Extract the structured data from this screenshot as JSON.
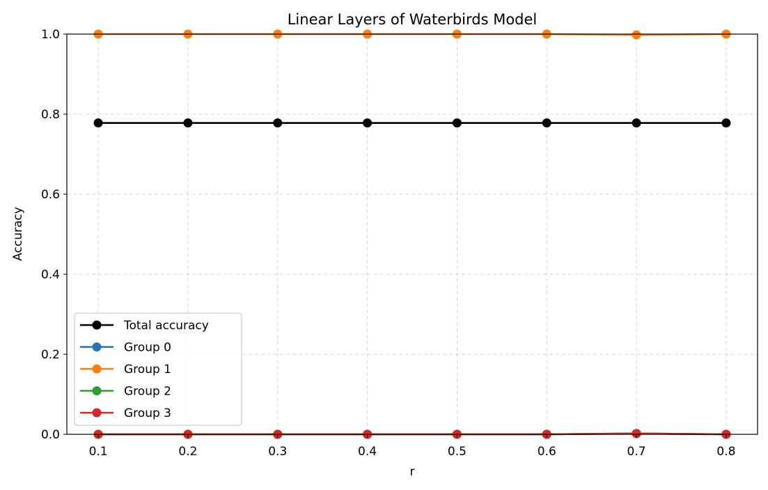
{
  "chart_data": {
    "type": "line",
    "title": "Linear Layers of Waterbirds Model",
    "xlabel": "r",
    "ylabel": "Accuracy",
    "x": [
      0.1,
      0.2,
      0.3,
      0.4,
      0.5,
      0.6,
      0.7,
      0.8
    ],
    "x_ticks": [
      "0.1",
      "0.2",
      "0.3",
      "0.4",
      "0.5",
      "0.6",
      "0.7",
      "0.8"
    ],
    "y_ticks": [
      "0.0",
      "0.2",
      "0.4",
      "0.6",
      "0.8",
      "1.0"
    ],
    "ylim": [
      0,
      1.0
    ],
    "grid": true,
    "legend_position": "lower-left",
    "series": [
      {
        "name": "Total accuracy",
        "color": "#000000",
        "values": [
          0.778,
          0.778,
          0.778,
          0.778,
          0.778,
          0.778,
          0.778,
          0.778
        ]
      },
      {
        "name": "Group 0",
        "color": "#1f77b4",
        "values": [
          0.0,
          0.0,
          0.0,
          0.0,
          0.0,
          0.0,
          0.002,
          0.0
        ]
      },
      {
        "name": "Group 1",
        "color": "#ff7f0e",
        "values": [
          1.0,
          1.0,
          1.0,
          1.0,
          1.0,
          1.0,
          0.998,
          1.0
        ]
      },
      {
        "name": "Group 2",
        "color": "#2ca02c",
        "values": [
          0.0,
          0.0,
          0.0,
          0.0,
          0.0,
          0.0,
          0.002,
          0.0
        ]
      },
      {
        "name": "Group 3",
        "color": "#d62728",
        "values": [
          0.0,
          0.0,
          0.0,
          0.0,
          0.0,
          0.0,
          0.002,
          0.0
        ]
      }
    ]
  }
}
